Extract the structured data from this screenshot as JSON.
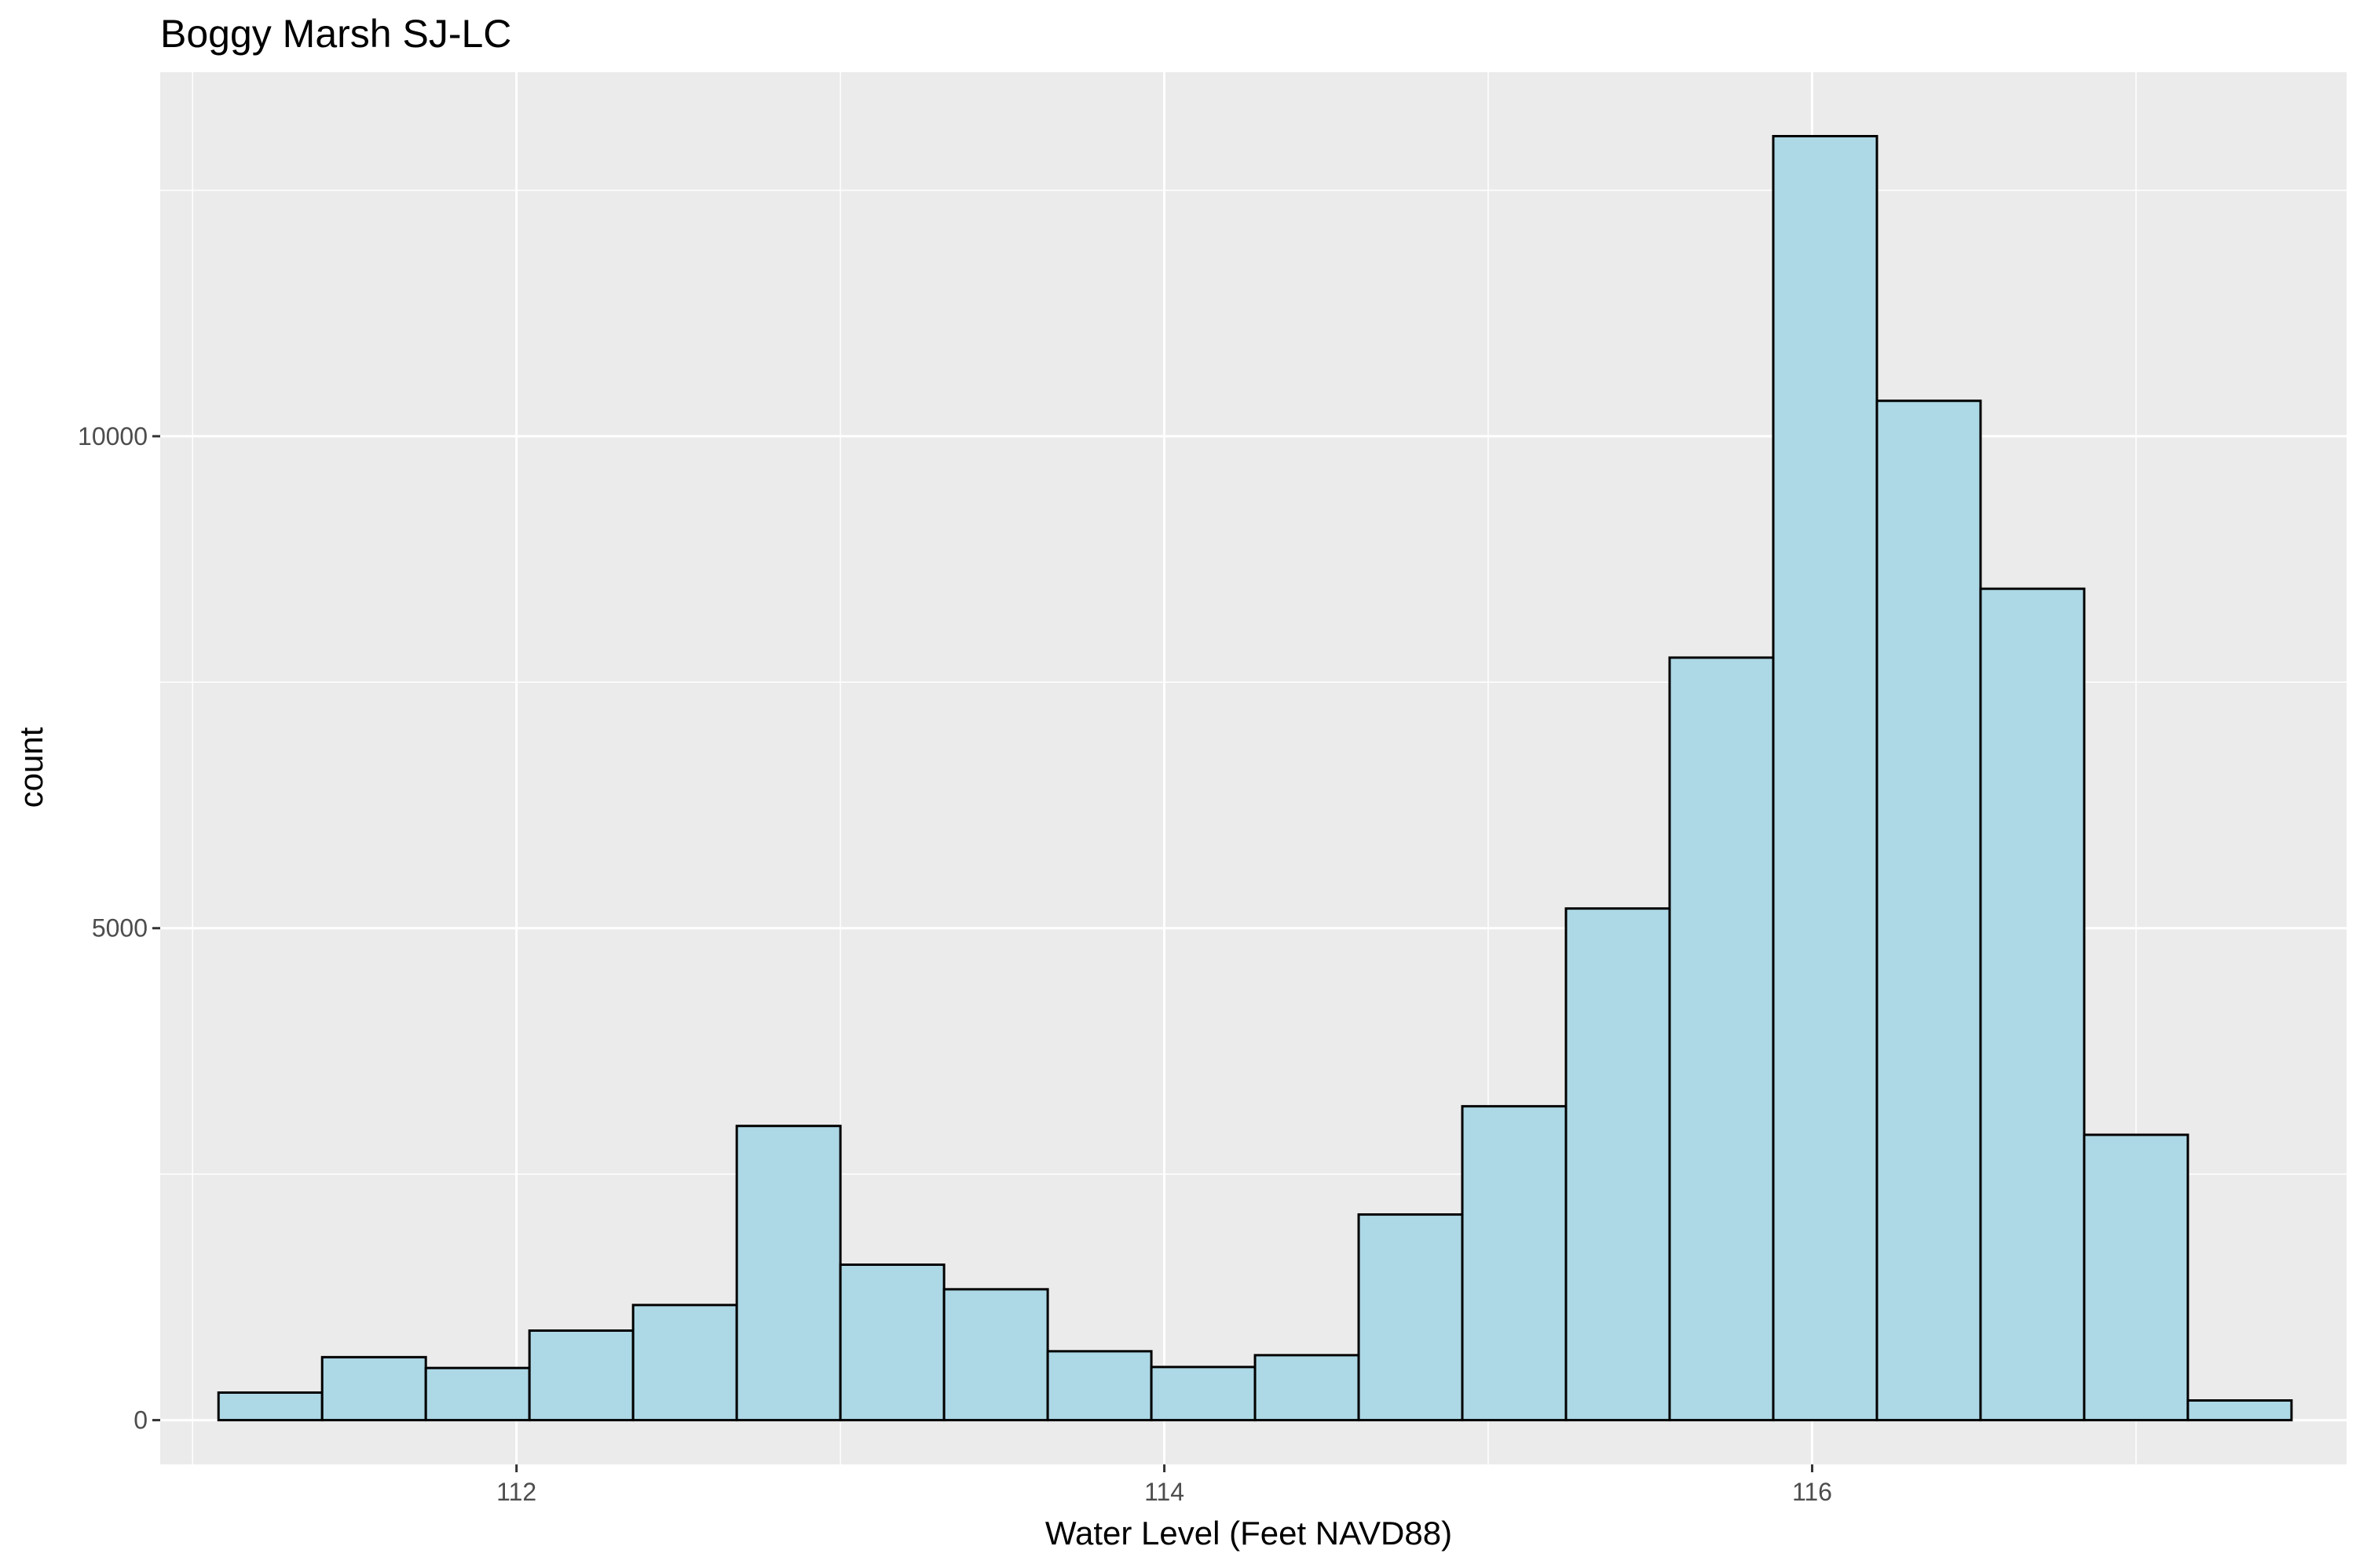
{
  "chart_data": {
    "type": "bar",
    "subtype": "histogram",
    "title": "Boggy Marsh SJ-LC",
    "xlabel": "Water Level (Feet NAVD88)",
    "ylabel": "count",
    "xlim": [
      110.9,
      117.65
    ],
    "ylim": [
      -450,
      13700
    ],
    "x_ticks": [
      112,
      114,
      116
    ],
    "x_tick_labels": [
      "112",
      "114",
      "116"
    ],
    "y_ticks": [
      0,
      5000,
      10000
    ],
    "y_tick_labels": [
      "0",
      "5000",
      "10000"
    ],
    "x_minor_ticks": [
      111,
      113,
      115,
      117
    ],
    "y_minor_ticks": [
      2500,
      7500,
      12500
    ],
    "grid": true,
    "legend": "none",
    "bin_width": 0.32,
    "bins": [
      {
        "x0": 111.08,
        "x1": 111.4,
        "count": 280
      },
      {
        "x0": 111.4,
        "x1": 111.72,
        "count": 640
      },
      {
        "x0": 111.72,
        "x1": 112.04,
        "count": 530
      },
      {
        "x0": 112.04,
        "x1": 112.36,
        "count": 910
      },
      {
        "x0": 112.36,
        "x1": 112.68,
        "count": 1170
      },
      {
        "x0": 112.68,
        "x1": 113.0,
        "count": 2990
      },
      {
        "x0": 113.0,
        "x1": 113.32,
        "count": 1580
      },
      {
        "x0": 113.32,
        "x1": 113.64,
        "count": 1330
      },
      {
        "x0": 113.64,
        "x1": 113.96,
        "count": 700
      },
      {
        "x0": 113.96,
        "x1": 114.28,
        "count": 540
      },
      {
        "x0": 114.28,
        "x1": 114.6,
        "count": 660
      },
      {
        "x0": 114.6,
        "x1": 114.92,
        "count": 2090
      },
      {
        "x0": 114.92,
        "x1": 115.24,
        "count": 3190
      },
      {
        "x0": 115.24,
        "x1": 115.56,
        "count": 5200
      },
      {
        "x0": 115.56,
        "x1": 115.88,
        "count": 7750
      },
      {
        "x0": 115.88,
        "x1": 116.2,
        "count": 13050
      },
      {
        "x0": 116.2,
        "x1": 116.52,
        "count": 10360
      },
      {
        "x0": 116.52,
        "x1": 116.84,
        "count": 8450
      },
      {
        "x0": 116.84,
        "x1": 117.16,
        "count": 2900
      },
      {
        "x0": 117.16,
        "x1": 117.48,
        "count": 200
      }
    ],
    "colors": {
      "fill": "#add8e6",
      "outline": "#000000",
      "panel": "#ebebeb",
      "grid": "#ffffff",
      "tick_text": "#4d4d4d"
    }
  }
}
